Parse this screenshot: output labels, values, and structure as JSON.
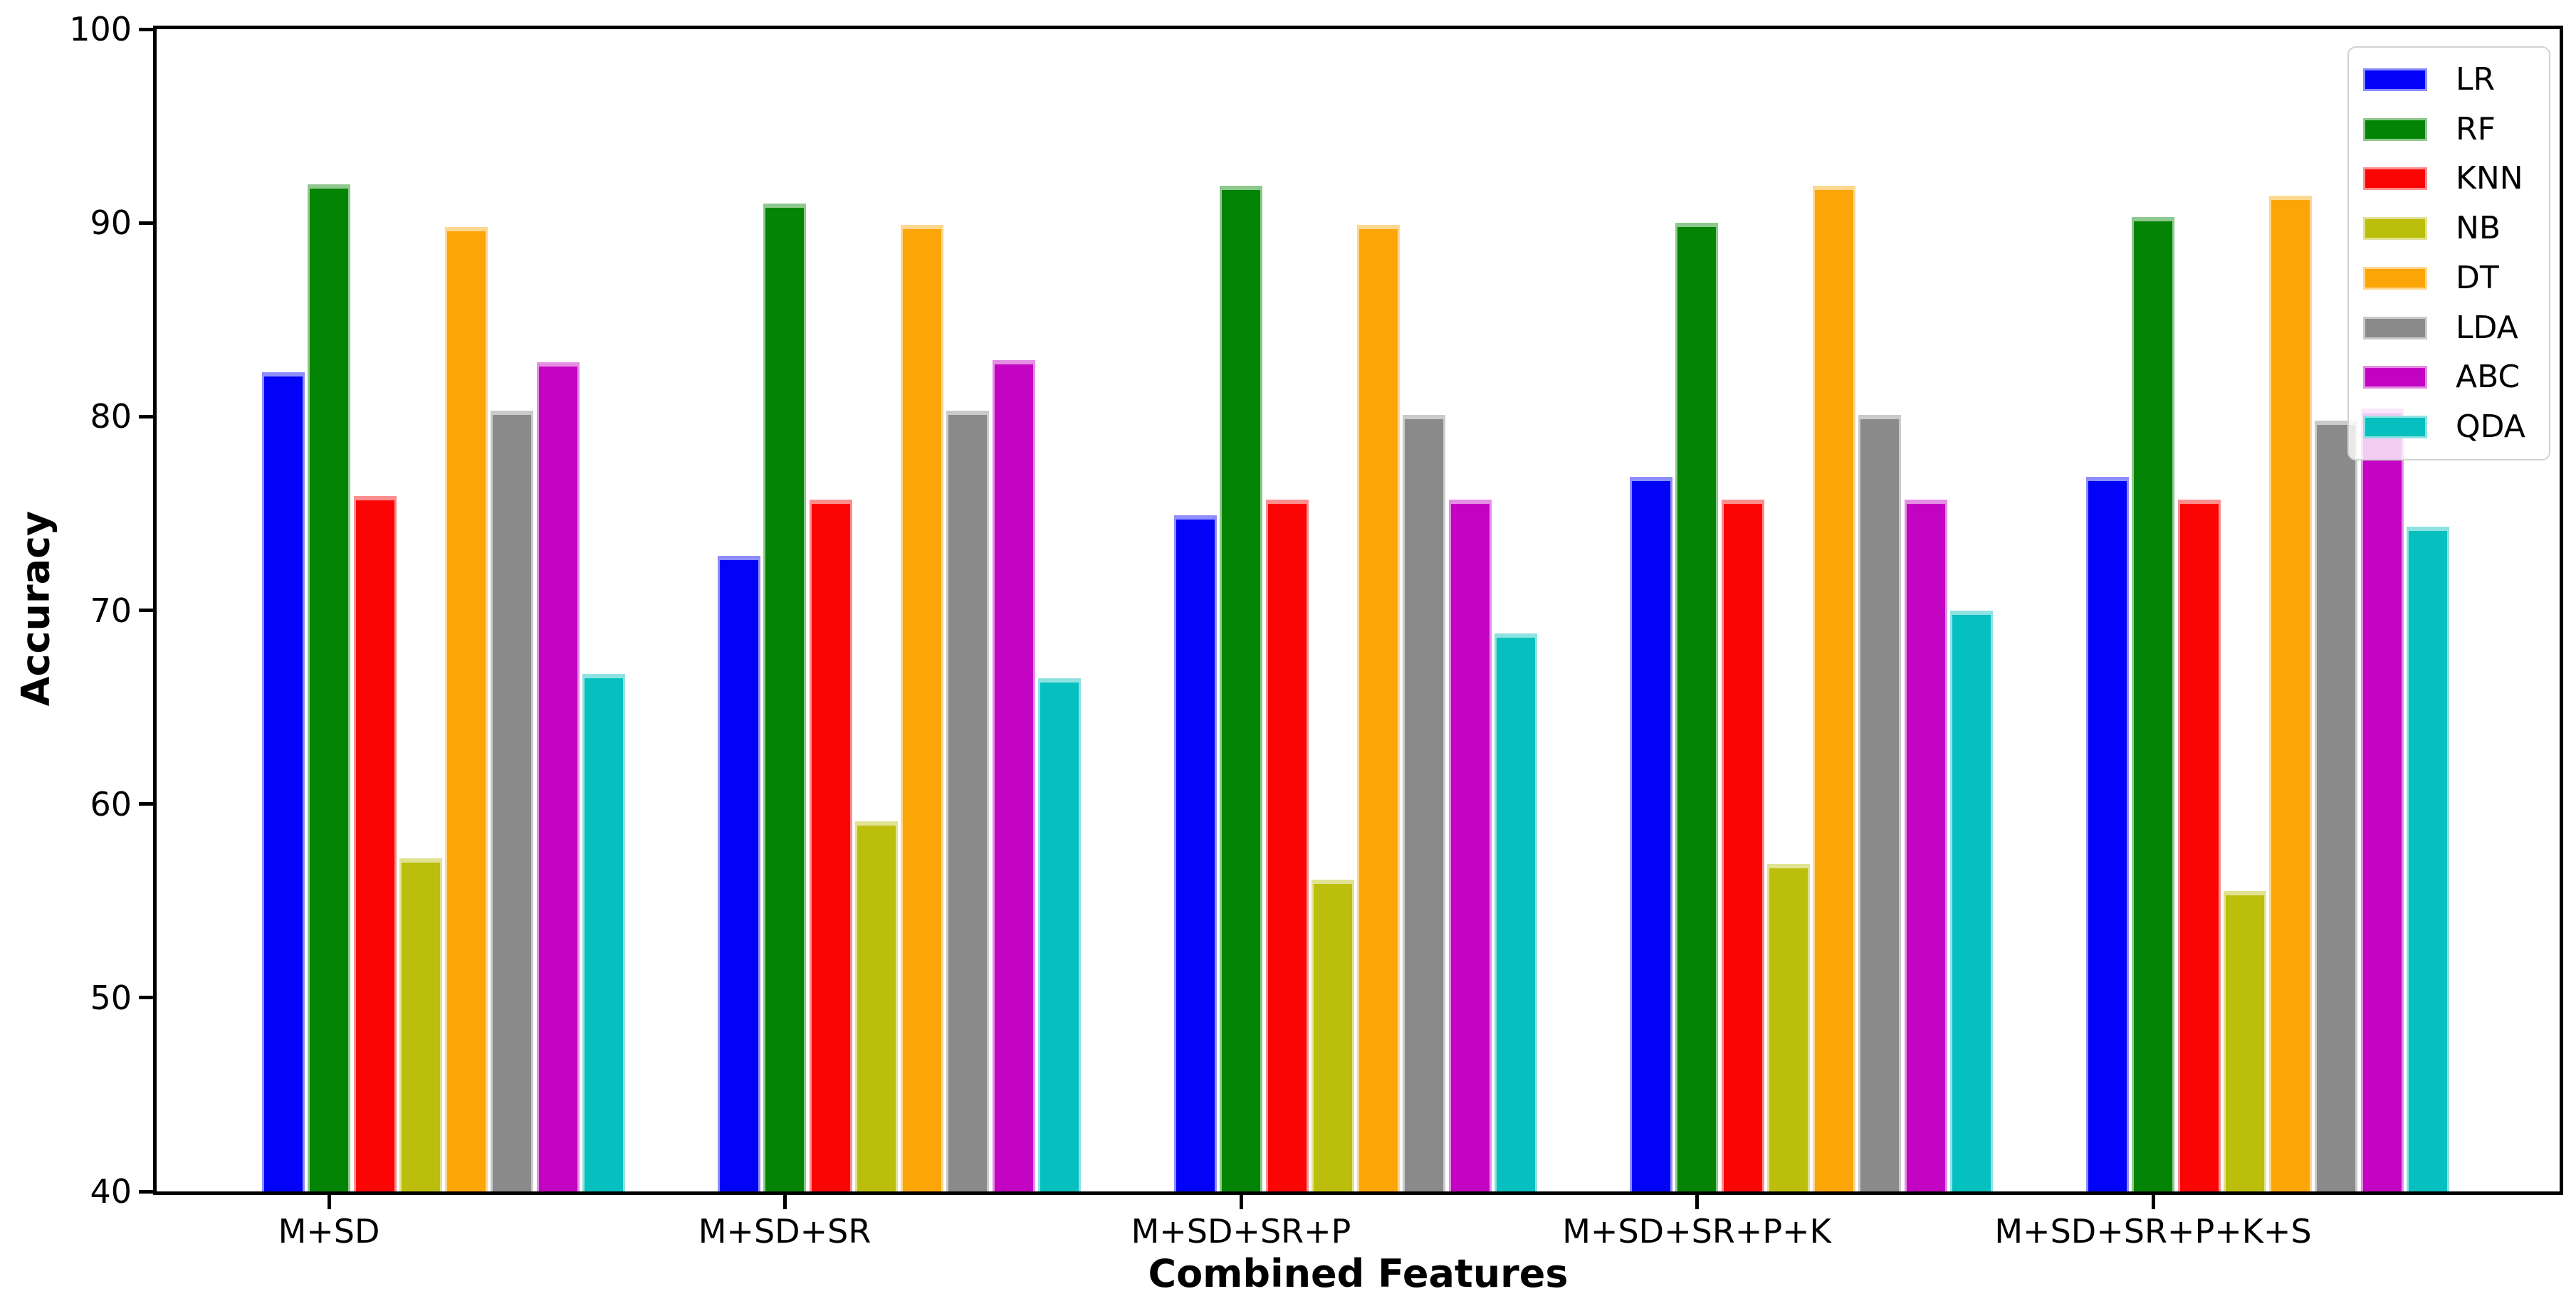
{
  "chart_data": {
    "type": "bar",
    "title": "",
    "xlabel": "Combined Features",
    "ylabel": "Accuracy",
    "categories": [
      "M+SD",
      "M+SD+SR",
      "M+SD+SR+P",
      "M+SD+SR+P+K",
      "M+SD+SR+P+K+S"
    ],
    "series": [
      {
        "name": "LR",
        "color": "#0202F8",
        "values": [
          82.3,
          72.8,
          74.9,
          76.9,
          76.9
        ]
      },
      {
        "name": "RF",
        "color": "#048404",
        "values": [
          92.0,
          91.0,
          91.9,
          90.0,
          90.3
        ]
      },
      {
        "name": "KNN",
        "color": "#FA0404",
        "values": [
          75.9,
          75.7,
          75.7,
          75.7,
          75.7
        ]
      },
      {
        "name": "NB",
        "color": "#BCBE0C",
        "values": [
          57.2,
          59.1,
          56.1,
          56.9,
          55.5
        ]
      },
      {
        "name": "DT",
        "color": "#FCA506",
        "values": [
          89.8,
          89.9,
          89.9,
          91.9,
          91.4
        ]
      },
      {
        "name": "LDA",
        "color": "#8A8A8A",
        "values": [
          80.3,
          80.3,
          80.1,
          80.1,
          79.8
        ]
      },
      {
        "name": "ABC",
        "color": "#C203C2",
        "values": [
          82.8,
          82.9,
          75.7,
          75.7,
          80.4
        ]
      },
      {
        "name": "QDA",
        "color": "#06BFBF",
        "values": [
          66.7,
          66.5,
          68.8,
          70.0,
          74.3
        ]
      }
    ],
    "ylim": [
      40,
      100
    ],
    "yticks": [
      40,
      50,
      60,
      70,
      80,
      90,
      100
    ],
    "grid": false,
    "legend_position": "upper right"
  }
}
